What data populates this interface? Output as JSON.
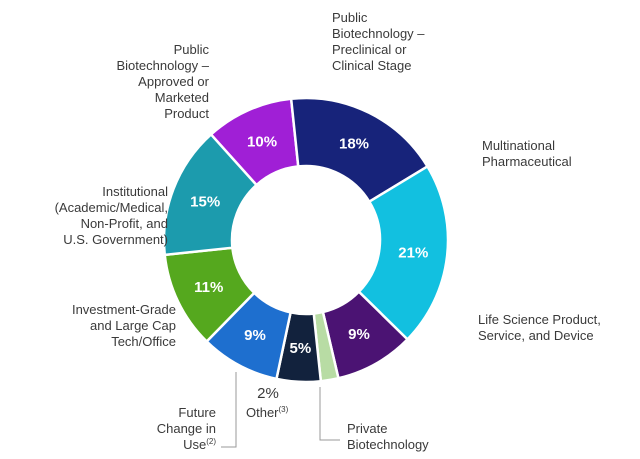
{
  "chart_data": {
    "type": "pie",
    "title": "",
    "slices": [
      {
        "lines": [
          "Public",
          "Biotechnology –",
          "Preclinical or",
          "Clinical Stage"
        ],
        "value": 10,
        "pct_label": "10%",
        "color": "#a01fd6"
      },
      {
        "lines": [
          "Multinational",
          "Pharmaceutical"
        ],
        "value": 18,
        "pct_label": "18%",
        "color": "#17237a"
      },
      {
        "lines": [
          "Life Science Product,",
          "Service, and Device"
        ],
        "value": 21,
        "pct_label": "21%",
        "color": "#12c0e0"
      },
      {
        "lines": [
          "Private",
          "Biotechnology"
        ],
        "value": 9,
        "pct_label": "9%",
        "color": "#4b1373"
      },
      {
        "lines": [
          "Other"
        ],
        "sup": "(3)",
        "value": 2,
        "pct_label": "2%",
        "color": "#b8dca4"
      },
      {
        "lines": [
          "Future",
          "Change in",
          "Use"
        ],
        "sup": "(2)",
        "value": 5,
        "pct_label": "5%",
        "color": "#12223d"
      },
      {
        "lines": [
          "Investment-Grade",
          "and Large Cap",
          "Tech/Office"
        ],
        "value": 9,
        "pct_label": "9%",
        "color": "#1e6fcf"
      },
      {
        "lines": [
          "Institutional",
          "(Academic/Medical,",
          "Non-Profit, and",
          "U.S. Government)"
        ],
        "value": 11,
        "pct_label": "11%",
        "color": "#55a81e"
      },
      {
        "lines": [
          "Public",
          "Biotechnology –",
          "Approved or",
          "Marketed",
          "Product"
        ],
        "value": 15,
        "pct_label": "15%",
        "color": "#1c9bad"
      }
    ]
  }
}
